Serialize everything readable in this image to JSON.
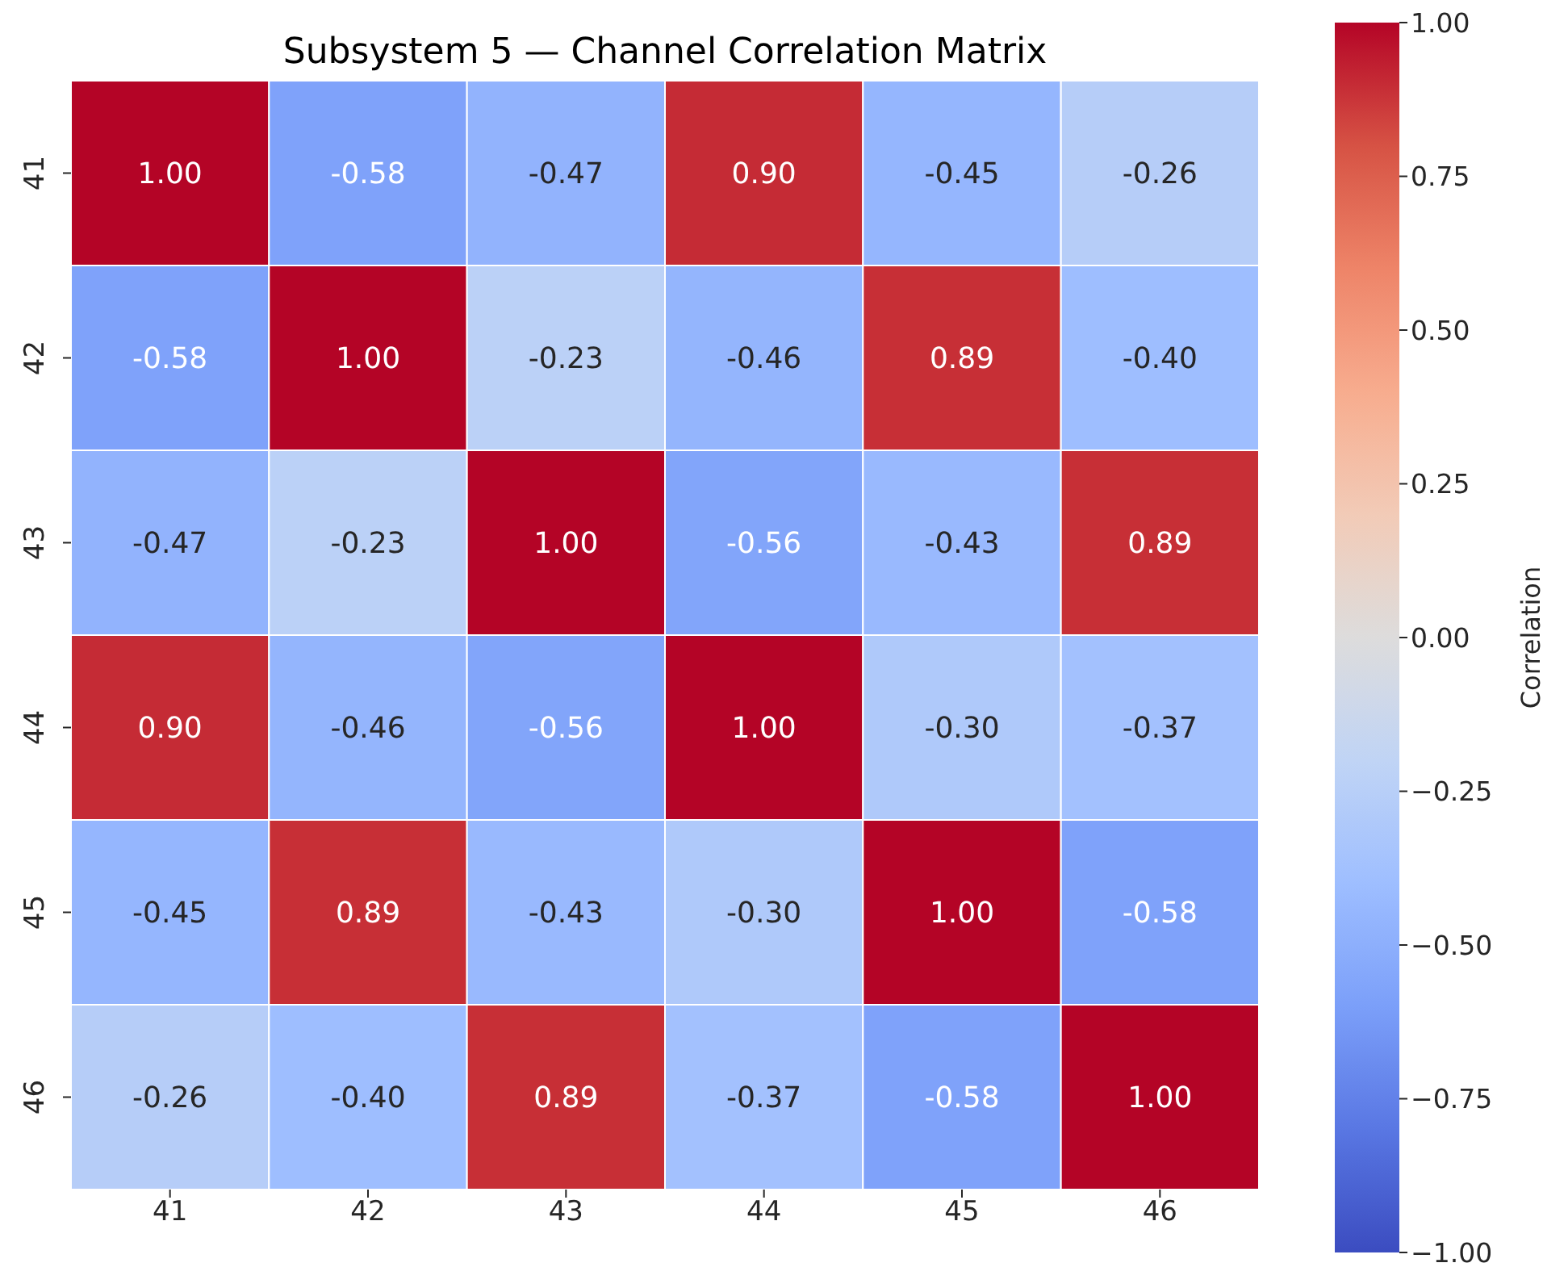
{
  "chart_data": {
    "type": "heatmap",
    "title": "Subsystem 5 — Channel Correlation Matrix",
    "clabel": "Correlation",
    "categories": [
      "41",
      "42",
      "43",
      "44",
      "45",
      "46"
    ],
    "y_categories": [
      "41",
      "42",
      "43",
      "44",
      "45",
      "46"
    ],
    "cells": [
      [
        1.0,
        -0.58,
        -0.47,
        0.9,
        -0.45,
        -0.26
      ],
      [
        -0.58,
        1.0,
        -0.23,
        -0.46,
        0.89,
        -0.4
      ],
      [
        -0.47,
        -0.23,
        1.0,
        -0.56,
        -0.43,
        0.89
      ],
      [
        0.9,
        -0.46,
        -0.56,
        1.0,
        -0.3,
        -0.37
      ],
      [
        -0.45,
        0.89,
        -0.43,
        -0.3,
        1.0,
        -0.58
      ],
      [
        -0.26,
        -0.4,
        0.89,
        -0.37,
        -0.58,
        1.0
      ]
    ],
    "cell_labels": [
      [
        "1.00",
        "-0.58",
        "-0.47",
        "0.90",
        "-0.45",
        "-0.26"
      ],
      [
        "-0.58",
        "1.00",
        "-0.23",
        "-0.46",
        "0.89",
        "-0.40"
      ],
      [
        "-0.47",
        "-0.23",
        "1.00",
        "-0.56",
        "-0.43",
        "0.89"
      ],
      [
        "0.90",
        "-0.46",
        "-0.56",
        "1.00",
        "-0.30",
        "-0.37"
      ],
      [
        "-0.45",
        "0.89",
        "-0.43",
        "-0.30",
        "1.00",
        "-0.58"
      ],
      [
        "-0.26",
        "-0.40",
        "0.89",
        "-0.37",
        "-0.58",
        "1.00"
      ]
    ],
    "clim": [
      -1,
      1
    ],
    "cticks": [
      {
        "value": -1,
        "label": "−1.00"
      },
      {
        "value": -0.75,
        "label": "−0.75"
      },
      {
        "value": -0.5,
        "label": "−0.50"
      },
      {
        "value": -0.25,
        "label": "−0.25"
      },
      {
        "value": 0,
        "label": "0.00"
      },
      {
        "value": 0.25,
        "label": "0.25"
      },
      {
        "value": 0.5,
        "label": "0.50"
      },
      {
        "value": 0.75,
        "label": "0.75"
      },
      {
        "value": 1,
        "label": "1.00"
      }
    ]
  }
}
